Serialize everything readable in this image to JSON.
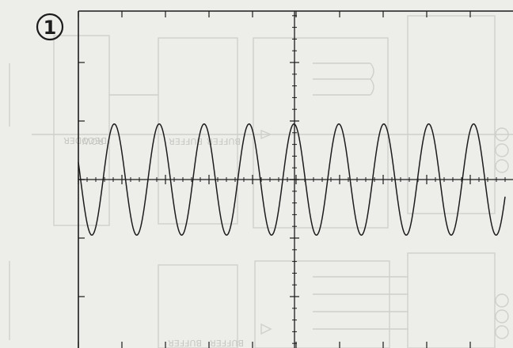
{
  "figure": {
    "number_label": "1"
  },
  "background_labels": {
    "row_decoder": [
      "ROW",
      "DECODER"
    ],
    "buffer_upper_left": "BUFFER",
    "buffer_upper_right": "BUFFER",
    "buffer_lower_left": "BUFFER",
    "buffer_lower_right": "BUFFER"
  },
  "colors": {
    "paper": "#ededea",
    "ink": "#1c1c1c",
    "ghost": "#cfcfcb"
  },
  "chart_data": {
    "type": "line",
    "title": "",
    "xlabel": "",
    "ylabel": "",
    "grid": false,
    "waveform": "sine",
    "cycles_shown": 9.5,
    "x_divisions": 10,
    "y_divisions": 8,
    "amplitude_divisions": 0.95,
    "offset_divisions": 0,
    "xlim": [
      0,
      10
    ],
    "ylim": [
      -4,
      4
    ]
  }
}
